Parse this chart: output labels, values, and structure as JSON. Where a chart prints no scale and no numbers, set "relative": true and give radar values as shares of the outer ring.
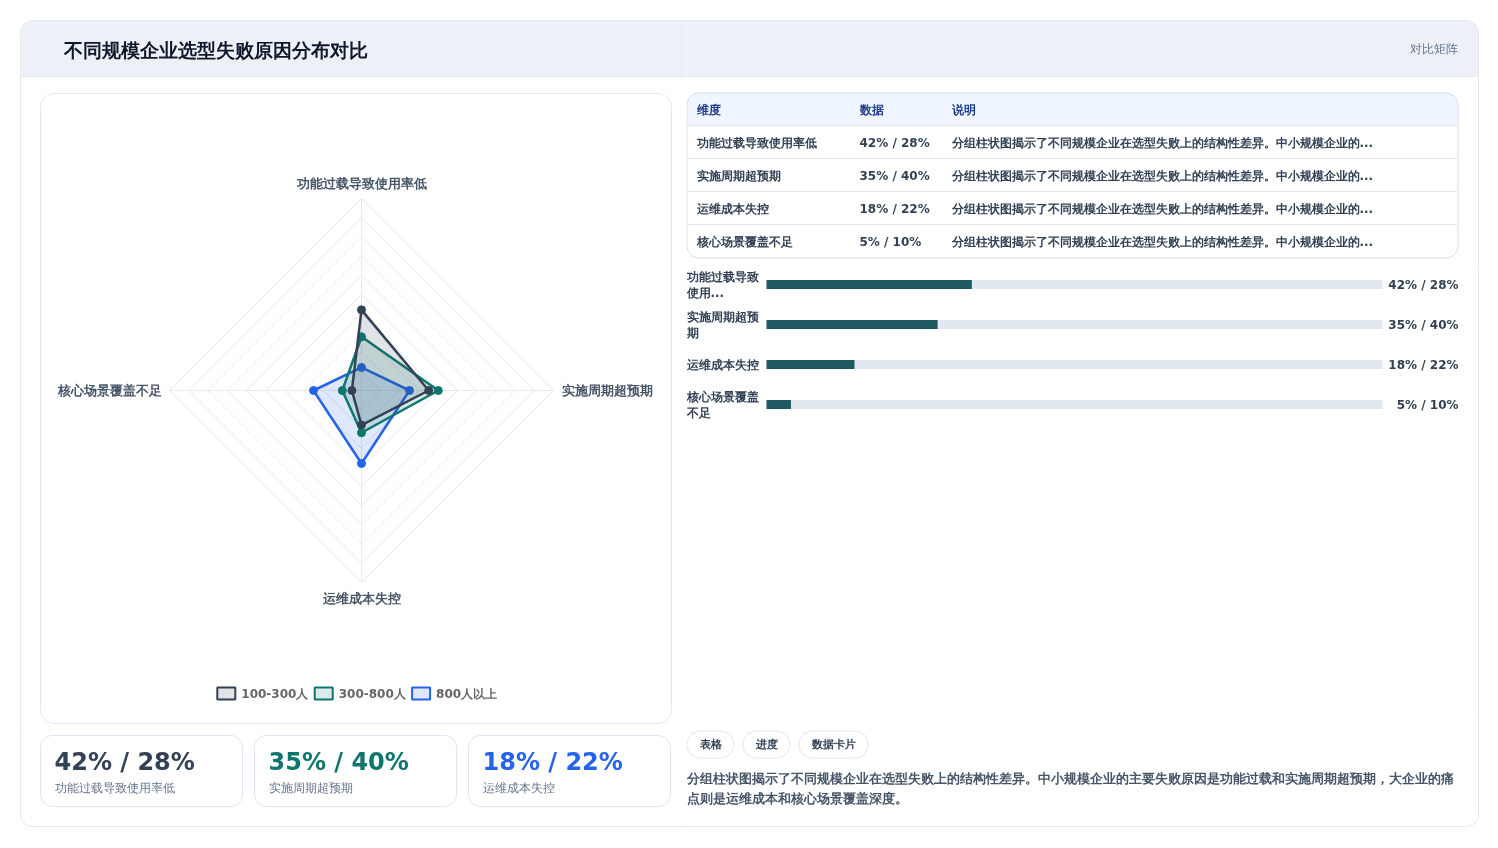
{
  "chart_data": [
    {
      "type": "radar",
      "title": "不同规模企业选型失败原因分布对比",
      "categories": [
        "功能过载导致使用率低",
        "实施周期超预期",
        "运维成本失控",
        "核心场景覆盖不足"
      ],
      "relative": true,
      "grid": true,
      "legend": "bottom",
      "marker": "circle",
      "series": [
        {
          "name": "100-300人",
          "color": "#334155",
          "values": [
            0.42,
            0.35,
            0.18,
            0.05
          ]
        },
        {
          "name": "300-800人",
          "color": "#0f766e",
          "values": [
            0.28,
            0.4,
            0.22,
            0.1
          ]
        },
        {
          "name": "800人以上",
          "color": "#2563eb",
          "values": [
            0.12,
            0.25,
            0.38,
            0.25
          ]
        }
      ]
    },
    {
      "type": "other",
      "annotations": [
        "对比矩阵"
      ],
      "categories": [
        "维度",
        "数据",
        "说明"
      ],
      "cell_labels": [
        [
          "功能过载导致使用率低",
          "42% / 28%",
          "分组柱状图揭示了不同规模企业在选型失败上的结构性差异。中小规模企业的..."
        ],
        [
          "实施周期超预期",
          "35% / 40%",
          "分组柱状图揭示了不同规模企业在选型失败上的结构性差异。中小规模企业的..."
        ],
        [
          "运维成本失控",
          "18% / 22%",
          "分组柱状图揭示了不同规模企业在选型失败上的结构性差异。中小规模企业的..."
        ],
        [
          "核心场景覆盖不足",
          "5% / 10%",
          "分组柱状图揭示了不同规模企业在选型失败上的结构性差异。中小规模企业的..."
        ]
      ]
    },
    {
      "type": "bar",
      "orientation": "horizontal",
      "categories": [
        "功能过载导致使用...",
        "实施周期超预期",
        "运维成本失控",
        "核心场景覆盖不足"
      ],
      "values": [
        42,
        35,
        18,
        5
      ],
      "value_labels": [
        "42% / 28%",
        "35% / 40%",
        "18% / 22%",
        "5% / 10%"
      ],
      "color": "#1f5a60",
      "tick_labels": "y"
    },
    {
      "type": "other",
      "categories": [
        "功能过载导致使用率低",
        "实施周期超预期",
        "运维成本失控"
      ],
      "value_labels": [
        "42% / 28%",
        "35% / 40%",
        "18% / 22%"
      ]
    },
    {
      "type": "other",
      "categories": [
        "表格",
        "进度",
        "数据卡片"
      ],
      "annotations": [
        "分组柱状图揭示了不同规模企业在选型失败上的结构性差异。中小规模企业的主要失败原因是功能过载和实施周期超预期，大企业的痛点则是运维成本和核心场景覆盖深度。"
      ]
    }
  ]
}
